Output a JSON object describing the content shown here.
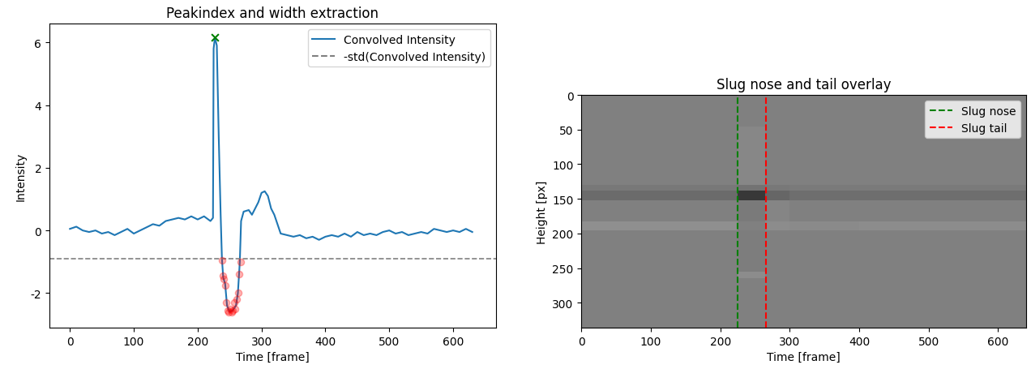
{
  "chart_data": [
    {
      "type": "line",
      "title": "Peakindex and width extraction",
      "x_label": "Time [frame]",
      "y_label": "Intensity",
      "xlim": [
        -32,
        667
      ],
      "ylim": [
        -3.1,
        6.6
      ],
      "xticks": [
        0,
        100,
        200,
        300,
        400,
        500,
        600
      ],
      "yticks": [
        -2,
        0,
        2,
        4,
        6
      ],
      "legend": "upper right",
      "series": [
        {
          "name": "Convolved Intensity",
          "type": "line",
          "color": "#1f77b4",
          "x": [
            0,
            10,
            20,
            30,
            40,
            50,
            60,
            70,
            80,
            90,
            100,
            110,
            120,
            130,
            140,
            150,
            160,
            170,
            180,
            190,
            200,
            210,
            220,
            224,
            225,
            227,
            230,
            233,
            236,
            238,
            240,
            243,
            246,
            250,
            255,
            260,
            263,
            266,
            268,
            272,
            280,
            285,
            290,
            295,
            300,
            305,
            310,
            315,
            320,
            325,
            330,
            340,
            350,
            360,
            370,
            380,
            390,
            400,
            410,
            420,
            430,
            440,
            450,
            460,
            470,
            480,
            490,
            500,
            510,
            520,
            530,
            540,
            550,
            560,
            570,
            580,
            590,
            600,
            610,
            620,
            630
          ],
          "values": [
            0.05,
            0.12,
            0.0,
            -0.05,
            0.0,
            -0.1,
            -0.05,
            -0.15,
            -0.05,
            0.05,
            -0.1,
            0.0,
            0.1,
            0.2,
            0.15,
            0.3,
            0.35,
            0.4,
            0.35,
            0.45,
            0.35,
            0.45,
            0.3,
            0.4,
            5.8,
            6.15,
            5.9,
            3.0,
            0.5,
            -0.9,
            -1.5,
            -1.7,
            -2.4,
            -2.6,
            -2.55,
            -2.4,
            -2.0,
            -1.0,
            0.3,
            0.6,
            0.65,
            0.5,
            0.7,
            0.9,
            1.2,
            1.25,
            1.1,
            0.7,
            0.5,
            0.2,
            -0.1,
            -0.15,
            -0.2,
            -0.15,
            -0.25,
            -0.2,
            -0.3,
            -0.2,
            -0.15,
            -0.2,
            -0.1,
            -0.2,
            -0.05,
            -0.15,
            -0.1,
            -0.15,
            -0.05,
            0.0,
            -0.1,
            -0.05,
            -0.15,
            -0.1,
            -0.05,
            -0.1,
            0.05,
            0.0,
            -0.05,
            0.0,
            -0.05,
            0.05,
            -0.05
          ]
        },
        {
          "name": "-std(Convolved Intensity)",
          "type": "hline",
          "color": "gray",
          "line_style": "dashed",
          "values": [
            -0.9
          ]
        },
        {
          "type": "scatter",
          "color": "green",
          "marker": "x",
          "x": [
            227
          ],
          "values": [
            6.15
          ]
        },
        {
          "type": "scatter",
          "color": "red",
          "marker": "o",
          "x": [
            238,
            240,
            241,
            243,
            245,
            247,
            249,
            251,
            253,
            255,
            257,
            259,
            261,
            263,
            265,
            267
          ],
          "values": [
            -0.95,
            -1.45,
            -1.55,
            -1.75,
            -2.3,
            -2.55,
            -2.6,
            -2.5,
            -2.6,
            -2.55,
            -2.3,
            -2.5,
            -2.2,
            -2.0,
            -1.4,
            -1.0
          ]
        }
      ]
    },
    {
      "type": "heatmap",
      "title": "Slug nose and tail overlay",
      "x_label": "Time [frame]",
      "y_label": "Height [px]",
      "xlim": [
        0,
        640
      ],
      "ylim": [
        336,
        0
      ],
      "xticks": [
        0,
        100,
        200,
        300,
        400,
        500,
        600
      ],
      "yticks": [
        0,
        50,
        100,
        150,
        200,
        250,
        300
      ],
      "color": "gray",
      "clim": [
        0,
        1
      ],
      "x_edges": [
        0,
        225,
        265,
        300,
        400,
        640
      ],
      "y_edges": [
        0,
        45,
        130,
        138,
        152,
        183,
        195,
        255,
        265,
        336
      ],
      "cells": [
        [
          0.5,
          0.5,
          0.5,
          0.5,
          0.5
        ],
        [
          0.5,
          0.53,
          0.5,
          0.5,
          0.5
        ],
        [
          0.47,
          0.45,
          0.47,
          0.48,
          0.48
        ],
        [
          0.42,
          0.22,
          0.4,
          0.43,
          0.43
        ],
        [
          0.5,
          0.48,
          0.52,
          0.5,
          0.5
        ],
        [
          0.56,
          0.5,
          0.55,
          0.54,
          0.55
        ],
        [
          0.5,
          0.49,
          0.5,
          0.5,
          0.5
        ],
        [
          0.5,
          0.55,
          0.5,
          0.5,
          0.5
        ],
        [
          0.5,
          0.5,
          0.5,
          0.5,
          0.5
        ]
      ],
      "legend": "upper right",
      "series": [
        {
          "name": "Slug nose",
          "type": "vline",
          "color": "green",
          "line_style": "dashed",
          "values": [
            225
          ]
        },
        {
          "name": "Slug tail",
          "type": "vline",
          "color": "red",
          "line_style": "dashed",
          "values": [
            266
          ]
        }
      ]
    }
  ]
}
